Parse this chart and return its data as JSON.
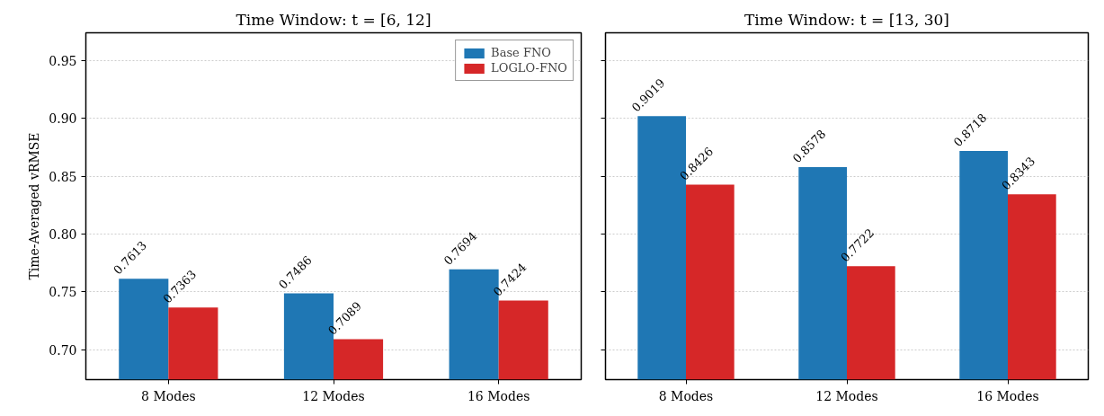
{
  "chart_data": [
    {
      "type": "bar",
      "title": "Time Window: t = [6, 12]",
      "ylabel": "Time-Averaged vRMSE",
      "categories": [
        "8 Modes",
        "12 Modes",
        "16 Modes"
      ],
      "series": [
        {
          "name": "Base FNO",
          "color": "#1f77b4",
          "values": [
            0.7613,
            0.7486,
            0.7694
          ]
        },
        {
          "name": "LOGLO-FNO",
          "color": "#d62728",
          "values": [
            0.7363,
            0.7089,
            0.7424
          ]
        }
      ],
      "ylim": [
        0.674,
        0.974
      ],
      "yticks": [
        {
          "value": 0.7,
          "label": "0.70"
        },
        {
          "value": 0.75,
          "label": "0.75"
        },
        {
          "value": 0.8,
          "label": "0.80"
        },
        {
          "value": 0.85,
          "label": "0.85"
        },
        {
          "value": 0.9,
          "label": "0.90"
        },
        {
          "value": 0.95,
          "label": "0.95"
        }
      ],
      "grid": "y",
      "legend": "top right",
      "data_labels": true
    },
    {
      "type": "bar",
      "title": "Time Window: t = [13, 30]",
      "categories": [
        "8 Modes",
        "12 Modes",
        "16 Modes"
      ],
      "series": [
        {
          "color": "#1f77b4",
          "values": [
            0.9019,
            0.8578,
            0.8718
          ]
        },
        {
          "color": "#d62728",
          "values": [
            0.8426,
            0.7722,
            0.8343
          ]
        }
      ],
      "ylim": [
        0.674,
        0.974
      ],
      "yticks": [
        0.7,
        0.75,
        0.8,
        0.85,
        0.9,
        0.95
      ],
      "grid": "y",
      "tick_labels": "x",
      "data_labels": true
    }
  ]
}
